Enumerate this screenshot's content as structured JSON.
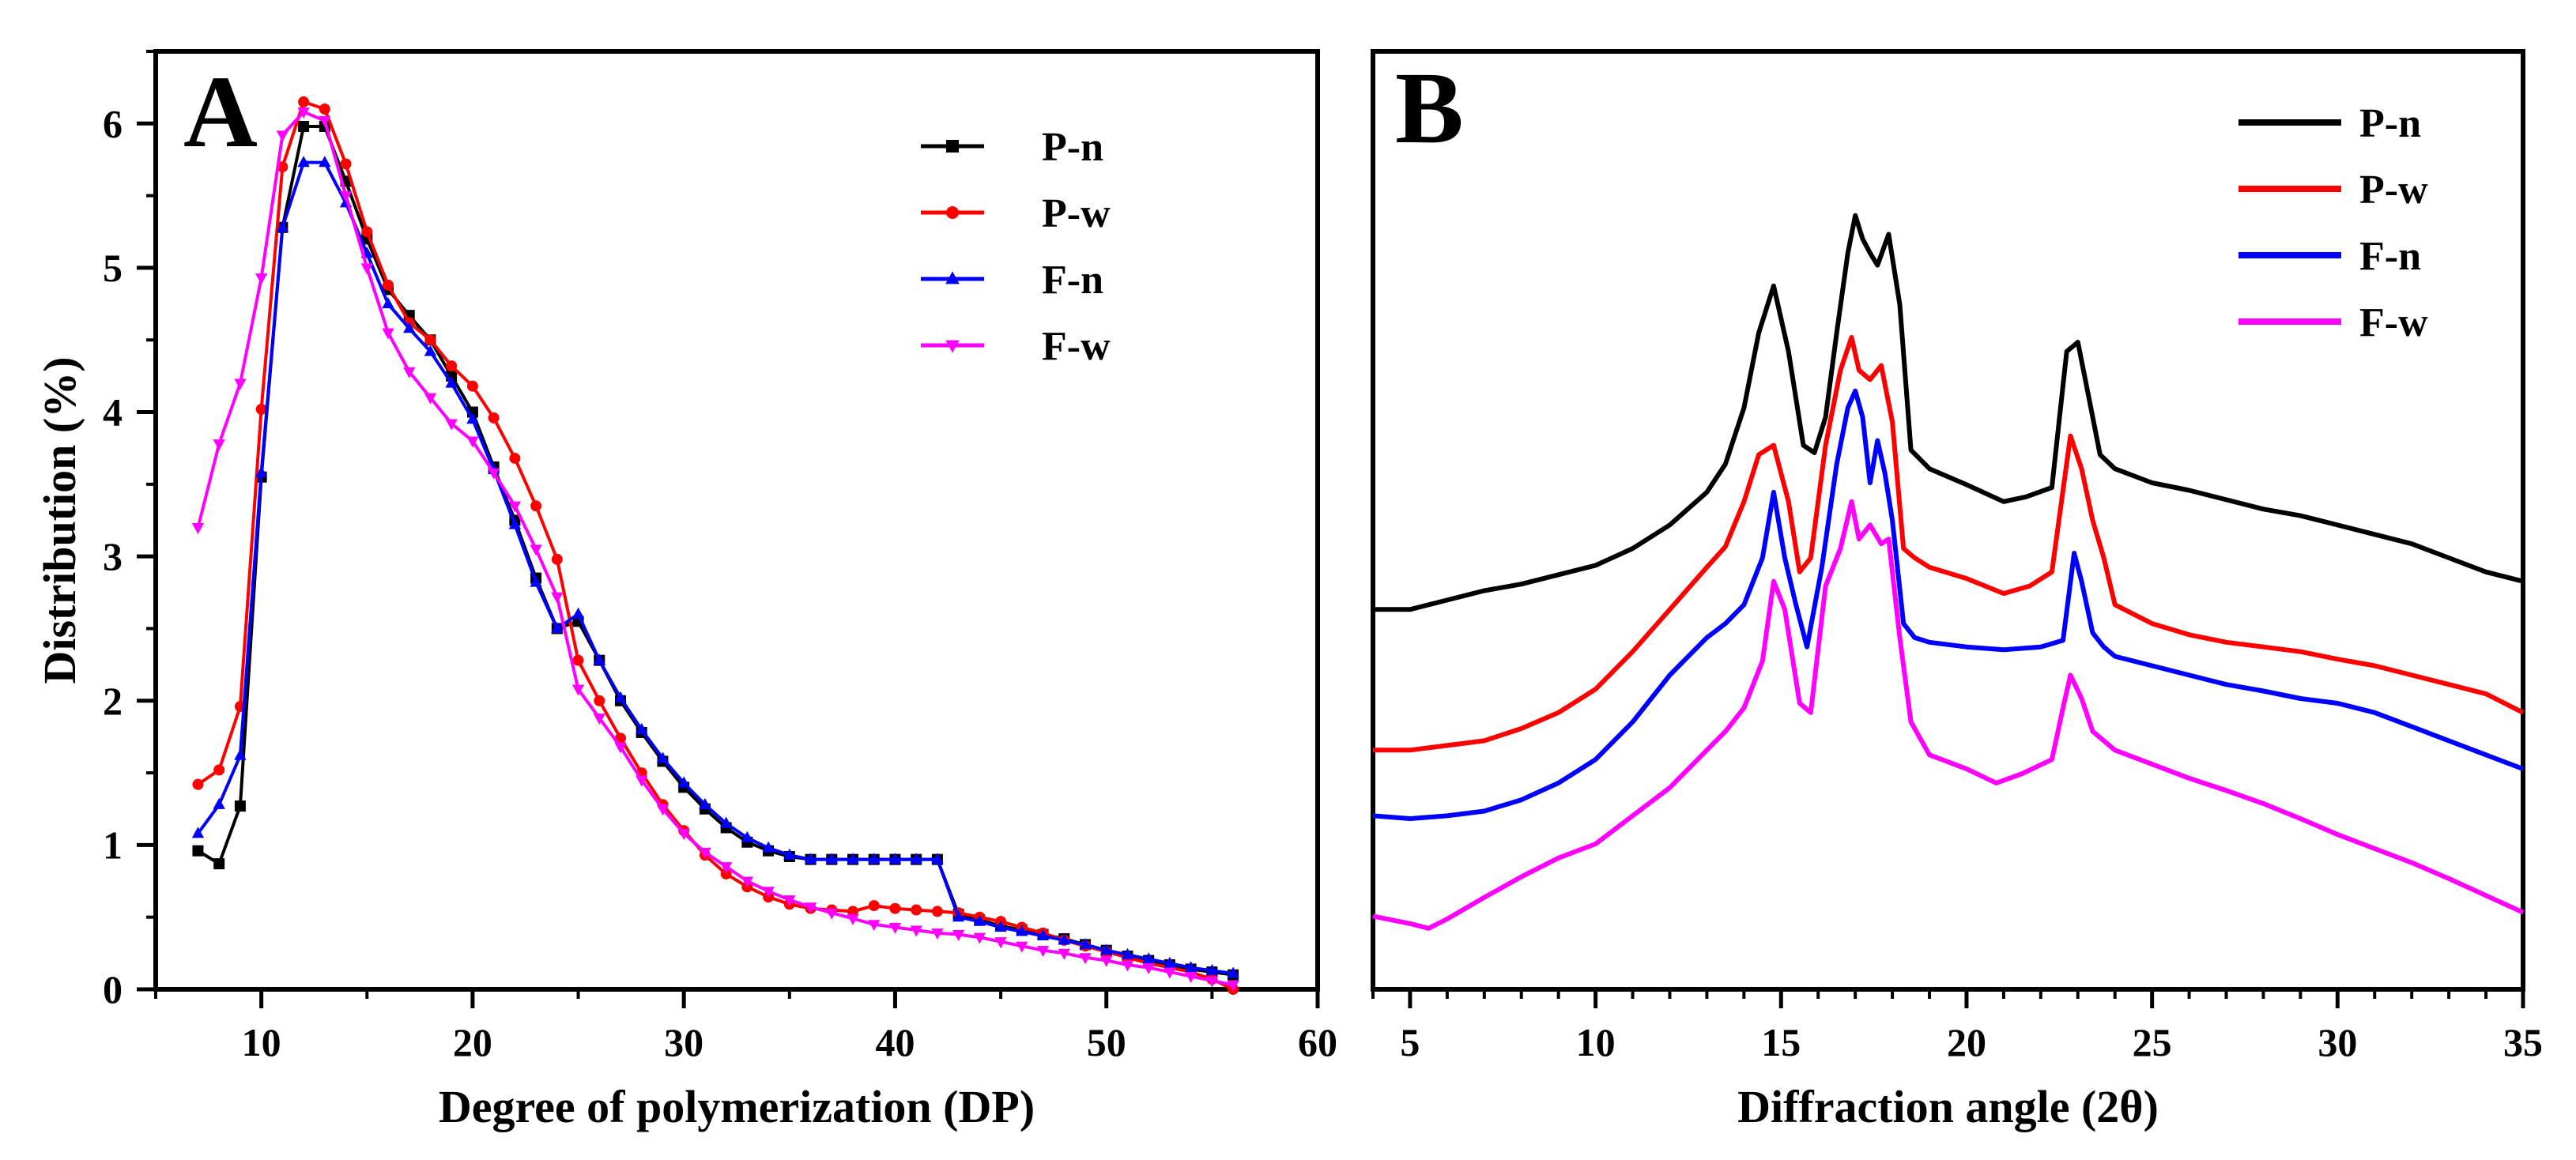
{
  "chart_data": [
    {
      "type": "line",
      "panel_label": "A",
      "xlabel": "Degree of polymerization (DP)",
      "ylabel": "Distribution (%)",
      "xlim": [
        5,
        60
      ],
      "ylim": [
        0,
        6.5
      ],
      "xticks": [
        10,
        20,
        30,
        40,
        50,
        60
      ],
      "yticks": [
        0,
        1,
        2,
        3,
        4,
        5,
        6
      ],
      "legend_position": "top-right",
      "series": [
        {
          "name": "P-n",
          "color": "#000000",
          "marker": "square",
          "x": [
            7,
            8,
            9,
            10,
            11,
            12,
            13,
            14,
            15,
            16,
            17,
            18,
            19,
            20,
            21,
            22,
            23,
            24,
            25,
            26,
            27,
            28,
            29,
            30,
            31,
            32,
            33,
            34,
            35,
            36,
            37,
            38,
            39,
            40,
            41,
            42,
            43,
            44,
            45,
            46,
            47,
            48,
            49,
            50,
            51,
            52,
            53,
            54,
            55,
            56
          ],
          "y": [
            0.96,
            0.87,
            1.27,
            3.55,
            5.28,
            5.98,
            5.98,
            5.6,
            5.2,
            4.85,
            4.67,
            4.5,
            4.25,
            4.0,
            3.62,
            3.25,
            2.85,
            2.5,
            2.55,
            2.28,
            2.0,
            1.78,
            1.58,
            1.4,
            1.25,
            1.12,
            1.02,
            0.96,
            0.92,
            0.9,
            0.9,
            0.9,
            0.9,
            0.9,
            0.9,
            0.9,
            0.52,
            0.48,
            0.44,
            0.41,
            0.38,
            0.35,
            0.31,
            0.27,
            0.23,
            0.2,
            0.17,
            0.14,
            0.12,
            0.1
          ]
        },
        {
          "name": "P-w",
          "color": "#ff0000",
          "marker": "circle",
          "x": [
            7,
            8,
            9,
            10,
            11,
            12,
            13,
            14,
            15,
            16,
            17,
            18,
            19,
            20,
            21,
            22,
            23,
            24,
            25,
            26,
            27,
            28,
            29,
            30,
            31,
            32,
            33,
            34,
            35,
            36,
            37,
            38,
            39,
            40,
            41,
            42,
            43,
            44,
            45,
            46,
            47,
            48,
            49,
            50,
            51,
            52,
            53,
            54,
            55,
            56
          ],
          "y": [
            1.42,
            1.52,
            1.96,
            4.02,
            5.7,
            6.15,
            6.1,
            5.72,
            5.25,
            4.88,
            4.62,
            4.5,
            4.32,
            4.18,
            3.96,
            3.68,
            3.35,
            2.98,
            2.28,
            2.0,
            1.74,
            1.5,
            1.28,
            1.1,
            0.93,
            0.8,
            0.71,
            0.64,
            0.59,
            0.56,
            0.55,
            0.54,
            0.58,
            0.56,
            0.55,
            0.54,
            0.53,
            0.5,
            0.47,
            0.43,
            0.39,
            0.34,
            0.3,
            0.26,
            0.22,
            0.18,
            0.15,
            0.12,
            0.07,
            0.0
          ]
        },
        {
          "name": "F-n",
          "color": "#0000ff",
          "marker": "triangle-up",
          "x": [
            7,
            8,
            9,
            10,
            11,
            12,
            13,
            14,
            15,
            16,
            17,
            18,
            19,
            20,
            21,
            22,
            23,
            24,
            25,
            26,
            27,
            28,
            29,
            30,
            31,
            32,
            33,
            34,
            35,
            36,
            37,
            38,
            39,
            40,
            41,
            42,
            43,
            44,
            45,
            46,
            47,
            48,
            49,
            50,
            51,
            52,
            53,
            54,
            55,
            56
          ],
          "y": [
            1.08,
            1.28,
            1.62,
            3.58,
            5.28,
            5.73,
            5.73,
            5.45,
            5.1,
            4.75,
            4.58,
            4.42,
            4.2,
            3.95,
            3.6,
            3.22,
            2.82,
            2.5,
            2.6,
            2.28,
            2.02,
            1.8,
            1.6,
            1.43,
            1.28,
            1.15,
            1.05,
            0.98,
            0.93,
            0.9,
            0.9,
            0.9,
            0.9,
            0.9,
            0.9,
            0.9,
            0.5,
            0.47,
            0.43,
            0.4,
            0.37,
            0.34,
            0.31,
            0.27,
            0.24,
            0.21,
            0.18,
            0.15,
            0.13,
            0.11
          ]
        },
        {
          "name": "F-w",
          "color": "#ff00ff",
          "marker": "triangle-down",
          "x": [
            7,
            8,
            9,
            10,
            11,
            12,
            13,
            14,
            15,
            16,
            17,
            18,
            19,
            20,
            21,
            22,
            23,
            24,
            25,
            26,
            27,
            28,
            29,
            30,
            31,
            32,
            33,
            34,
            35,
            36,
            37,
            38,
            39,
            40,
            41,
            42,
            43,
            44,
            45,
            46,
            47,
            48,
            49,
            50,
            51,
            52,
            53,
            54,
            55,
            56
          ],
          "y": [
            3.2,
            3.78,
            4.2,
            4.93,
            5.92,
            6.08,
            6.02,
            5.5,
            5.0,
            4.55,
            4.28,
            4.1,
            3.92,
            3.8,
            3.58,
            3.35,
            3.05,
            2.72,
            2.08,
            1.88,
            1.68,
            1.45,
            1.25,
            1.08,
            0.95,
            0.85,
            0.75,
            0.68,
            0.62,
            0.57,
            0.53,
            0.49,
            0.45,
            0.43,
            0.41,
            0.39,
            0.38,
            0.36,
            0.33,
            0.3,
            0.27,
            0.25,
            0.22,
            0.2,
            0.17,
            0.15,
            0.12,
            0.09,
            0.06,
            0.03
          ]
        }
      ]
    },
    {
      "type": "line",
      "panel_label": "B",
      "xlabel": "Diffraction angle (2θ)",
      "ylabel": "",
      "xlim": [
        4,
        35
      ],
      "ylim": [
        0,
        10
      ],
      "xticks": [
        5,
        10,
        15,
        20,
        25,
        30,
        35
      ],
      "yticks": [],
      "legend_position": "top-right",
      "series": [
        {
          "name": "P-n",
          "color": "#000000",
          "x": [
            4,
            5,
            6,
            7,
            8,
            9,
            10,
            11,
            12,
            13,
            13.5,
            14,
            14.4,
            14.8,
            15.2,
            15.6,
            15.9,
            16.2,
            16.5,
            16.8,
            17.0,
            17.2,
            17.4,
            17.6,
            17.9,
            18.2,
            18.5,
            19,
            20,
            21,
            21.6,
            22.3,
            22.7,
            23.0,
            23.3,
            23.6,
            24,
            25,
            26,
            27,
            28,
            29,
            30,
            31,
            32,
            33,
            34,
            35
          ],
          "y": [
            4.05,
            4.05,
            4.15,
            4.25,
            4.32,
            4.42,
            4.52,
            4.7,
            4.95,
            5.3,
            5.6,
            6.2,
            7.0,
            7.5,
            6.8,
            5.8,
            5.72,
            6.1,
            7.0,
            7.85,
            8.25,
            8.0,
            7.85,
            7.72,
            8.05,
            7.3,
            5.75,
            5.55,
            5.38,
            5.2,
            5.25,
            5.35,
            6.8,
            6.9,
            6.3,
            5.7,
            5.55,
            5.4,
            5.32,
            5.22,
            5.12,
            5.05,
            4.95,
            4.85,
            4.75,
            4.6,
            4.45,
            4.35
          ]
        },
        {
          "name": "P-w",
          "color": "#ff0000",
          "x": [
            4,
            5,
            6,
            7,
            8,
            9,
            10,
            11,
            12,
            13,
            13.5,
            14,
            14.4,
            14.8,
            15.2,
            15.5,
            15.8,
            16.2,
            16.6,
            16.9,
            17.1,
            17.4,
            17.7,
            18.0,
            18.3,
            18.6,
            19,
            20,
            21,
            21.7,
            22.3,
            22.8,
            23.1,
            23.4,
            23.7,
            24,
            25,
            26,
            27,
            28,
            29,
            30,
            31,
            32,
            33,
            34,
            35
          ],
          "y": [
            2.55,
            2.55,
            2.6,
            2.65,
            2.78,
            2.95,
            3.2,
            3.6,
            4.05,
            4.5,
            4.72,
            5.2,
            5.7,
            5.8,
            5.2,
            4.45,
            4.6,
            5.8,
            6.6,
            6.95,
            6.6,
            6.5,
            6.65,
            6.05,
            4.7,
            4.6,
            4.5,
            4.38,
            4.22,
            4.3,
            4.45,
            5.9,
            5.55,
            5.0,
            4.6,
            4.1,
            3.9,
            3.78,
            3.7,
            3.65,
            3.6,
            3.52,
            3.45,
            3.35,
            3.25,
            3.15,
            2.95
          ]
        },
        {
          "name": "F-n",
          "color": "#0000ff",
          "x": [
            4,
            5,
            6,
            7,
            8,
            9,
            10,
            11,
            12,
            13,
            13.5,
            14,
            14.5,
            14.8,
            15.1,
            15.4,
            15.7,
            16.1,
            16.5,
            16.8,
            17.0,
            17.2,
            17.4,
            17.6,
            17.8,
            18.0,
            18.3,
            18.6,
            19,
            20,
            21,
            22,
            22.6,
            22.9,
            23.1,
            23.4,
            23.7,
            24,
            25,
            26,
            27,
            28,
            29,
            30,
            31,
            32,
            33,
            34,
            35
          ],
          "y": [
            1.85,
            1.82,
            1.85,
            1.9,
            2.02,
            2.2,
            2.45,
            2.85,
            3.35,
            3.75,
            3.9,
            4.1,
            4.6,
            5.3,
            4.6,
            4.1,
            3.65,
            4.5,
            5.6,
            6.2,
            6.38,
            6.1,
            5.4,
            5.85,
            5.5,
            5.0,
            3.9,
            3.75,
            3.7,
            3.65,
            3.62,
            3.65,
            3.72,
            4.65,
            4.35,
            3.8,
            3.65,
            3.55,
            3.45,
            3.35,
            3.25,
            3.18,
            3.1,
            3.05,
            2.95,
            2.8,
            2.65,
            2.5,
            2.35
          ]
        },
        {
          "name": "F-w",
          "color": "#ff00ff",
          "x": [
            4,
            5,
            5.5,
            6,
            7,
            8,
            9,
            10,
            11,
            12,
            13,
            13.5,
            14,
            14.5,
            14.8,
            15.1,
            15.5,
            15.8,
            16.2,
            16.6,
            16.9,
            17.1,
            17.4,
            17.7,
            17.9,
            18.2,
            18.5,
            19,
            20,
            20.8,
            21.5,
            22.3,
            22.6,
            22.8,
            23.1,
            23.4,
            24,
            25,
            26,
            27,
            28,
            29,
            30,
            31,
            32,
            33,
            34,
            35
          ],
          "y": [
            0.78,
            0.7,
            0.65,
            0.75,
            0.98,
            1.2,
            1.4,
            1.55,
            1.85,
            2.15,
            2.55,
            2.75,
            3.0,
            3.5,
            4.35,
            4.05,
            3.05,
            2.95,
            4.3,
            4.7,
            5.2,
            4.8,
            4.95,
            4.75,
            4.8,
            3.75,
            2.85,
            2.5,
            2.35,
            2.2,
            2.3,
            2.45,
            3.0,
            3.35,
            3.1,
            2.75,
            2.55,
            2.4,
            2.25,
            2.12,
            1.98,
            1.82,
            1.65,
            1.5,
            1.35,
            1.18,
            1.0,
            0.82
          ]
        }
      ]
    }
  ]
}
